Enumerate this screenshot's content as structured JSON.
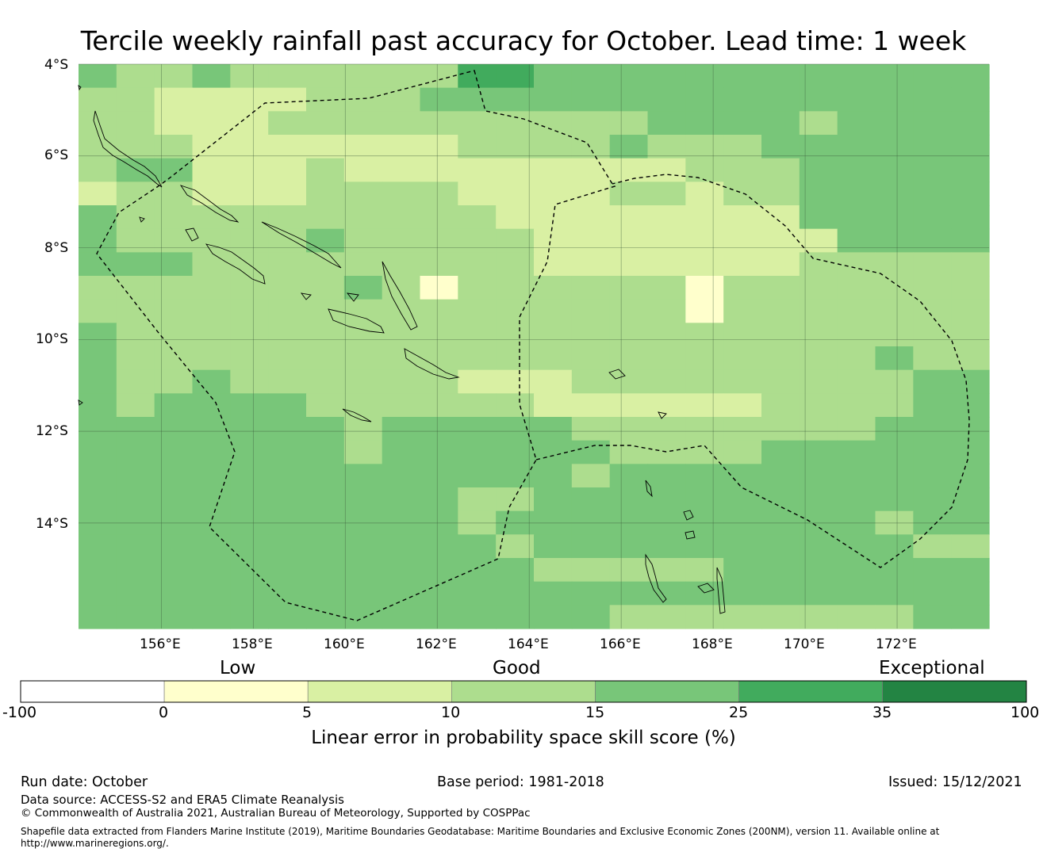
{
  "title": "Tercile weekly rainfall past accuracy for October. Lead time: 1 week",
  "map": {
    "lon_range": [
      154.2,
      174.0
    ],
    "lat_range": [
      -16.3,
      -4.0
    ],
    "lon_ticks": [
      "156°E",
      "158°E",
      "160°E",
      "162°E",
      "164°E",
      "166°E",
      "168°E",
      "170°E",
      "172°E"
    ],
    "lat_ticks": [
      "4°S",
      "6°S",
      "8°S",
      "10°S",
      "12°S",
      "14°S"
    ],
    "grid_codes": [
      "CBBCBBBBBBDDCCCCCCCCCCCC",
      "BBAAAABBBCCCCCCCCCCCCCCC",
      "BBAAABBBBBBBBBBCCCCBCCCC",
      "BBBAAAAAAABBBBCBBBCCCCCC",
      "BCCAAABAAAAAAAAABBBCCCCC",
      "ABBAAABBBBAAAABBABBCCCCC",
      "CBBBBBBBBBBAAAAAAAACCCCC",
      "CBBBBBCBBBBBAAAAAAAACCCC",
      "CCCBBBBBBBBBAAAAAAABBBBB",
      "BBBBBBBCB0BBBBBB0BBBBBBB",
      "BBBBBBBBBBBBBBBB0BBBBBBB",
      "CBBBBBBBBBBBBBBBBBBBBBBB",
      "CBBBBBBBBBBBBBBBBBBBBCBB",
      "CBBCBBBBBBAAABBBBBBBBBCC",
      "CBCCCCBBBBBBAAAAAABBBBCC",
      "CCCCCCCBCCCCCBBBBBBBBCCC",
      "CCCCCCCBCCCCCCBBBBCCCCCC",
      "CCCCCCCCCCCCCBCCCCCCCCCC",
      "CCCCCCCCCCBBCCCCCCCCCCCC",
      "CCCCCCCCCCBCCCCCCCCCCBCC",
      "CCCCCCCCCCCBCCCCCCCCCCBB",
      "CCCCCCCCCCCCBBBBBCCCCCCC",
      "CCCCCCCCCCCCCCCCCCCCCCCC",
      "CCCCCCCCCCCCCCBBBBBBBBCC"
    ],
    "color_scale": {
      "0": "#ffffcc",
      "A": "#d9f0a3",
      "B": "#addd8e",
      "C": "#78c679",
      "D": "#41ab5d"
    }
  },
  "colorbar": {
    "category_labels": [
      "Low",
      "Good",
      "Exceptional"
    ],
    "ticks": [
      "-100",
      "0",
      "5",
      "10",
      "15",
      "25",
      "35",
      "100"
    ],
    "colors": [
      "#ffffff",
      "#ffffcc",
      "#d9f0a3",
      "#addd8e",
      "#78c679",
      "#41ab5d",
      "#238443"
    ],
    "axis_title": "Linear error in probability space skill score (%)"
  },
  "footer": {
    "run_date": "Run date: October",
    "base_period": "Base period: 1981-2018",
    "issued": "Issued: 15/12/2021",
    "data_source": "Data source: ACCESS-S2 and ERA5 Climate Reanalysis",
    "copyright": "© Commonwealth of Australia 2021, Australian Bureau of Meteorology, Supported by COSPPac",
    "shapefile": "Shapefile data extracted from Flanders Marine Institute (2019), Maritime Boundaries Geodatabase: Maritime Boundaries and Exclusive Economic Zones (200NM), version 11. Available online at http://www.marineregions.org/."
  }
}
